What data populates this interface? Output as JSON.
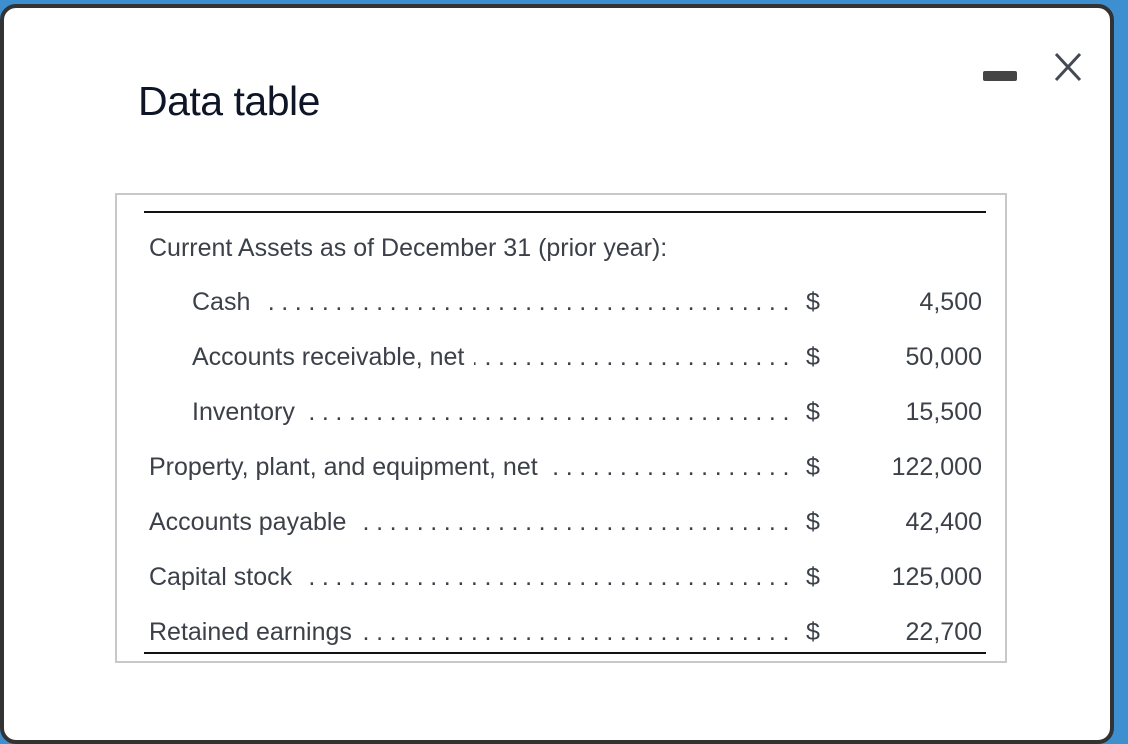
{
  "dialog": {
    "title": "Data table",
    "minimize_icon": "minimize-icon",
    "close_icon": "close-icon"
  },
  "table": {
    "heading": "Current Assets as of December 31 (prior year):",
    "rows": [
      {
        "label": "Cash",
        "currency": "$",
        "amount": "4,500",
        "indent": true
      },
      {
        "label": "Accounts receivable, net",
        "currency": "$",
        "amount": "50,000",
        "indent": true
      },
      {
        "label": "Inventory",
        "currency": "$",
        "amount": "15,500",
        "indent": true
      },
      {
        "label": "Property, plant, and equipment, net",
        "currency": "$",
        "amount": "122,000",
        "indent": false
      },
      {
        "label": "Accounts payable",
        "currency": "$",
        "amount": "42,400",
        "indent": false
      },
      {
        "label": "Capital stock",
        "currency": "$",
        "amount": "125,000",
        "indent": false
      },
      {
        "label": "Retained earnings",
        "currency": "$",
        "amount": "22,700",
        "indent": false
      }
    ]
  }
}
